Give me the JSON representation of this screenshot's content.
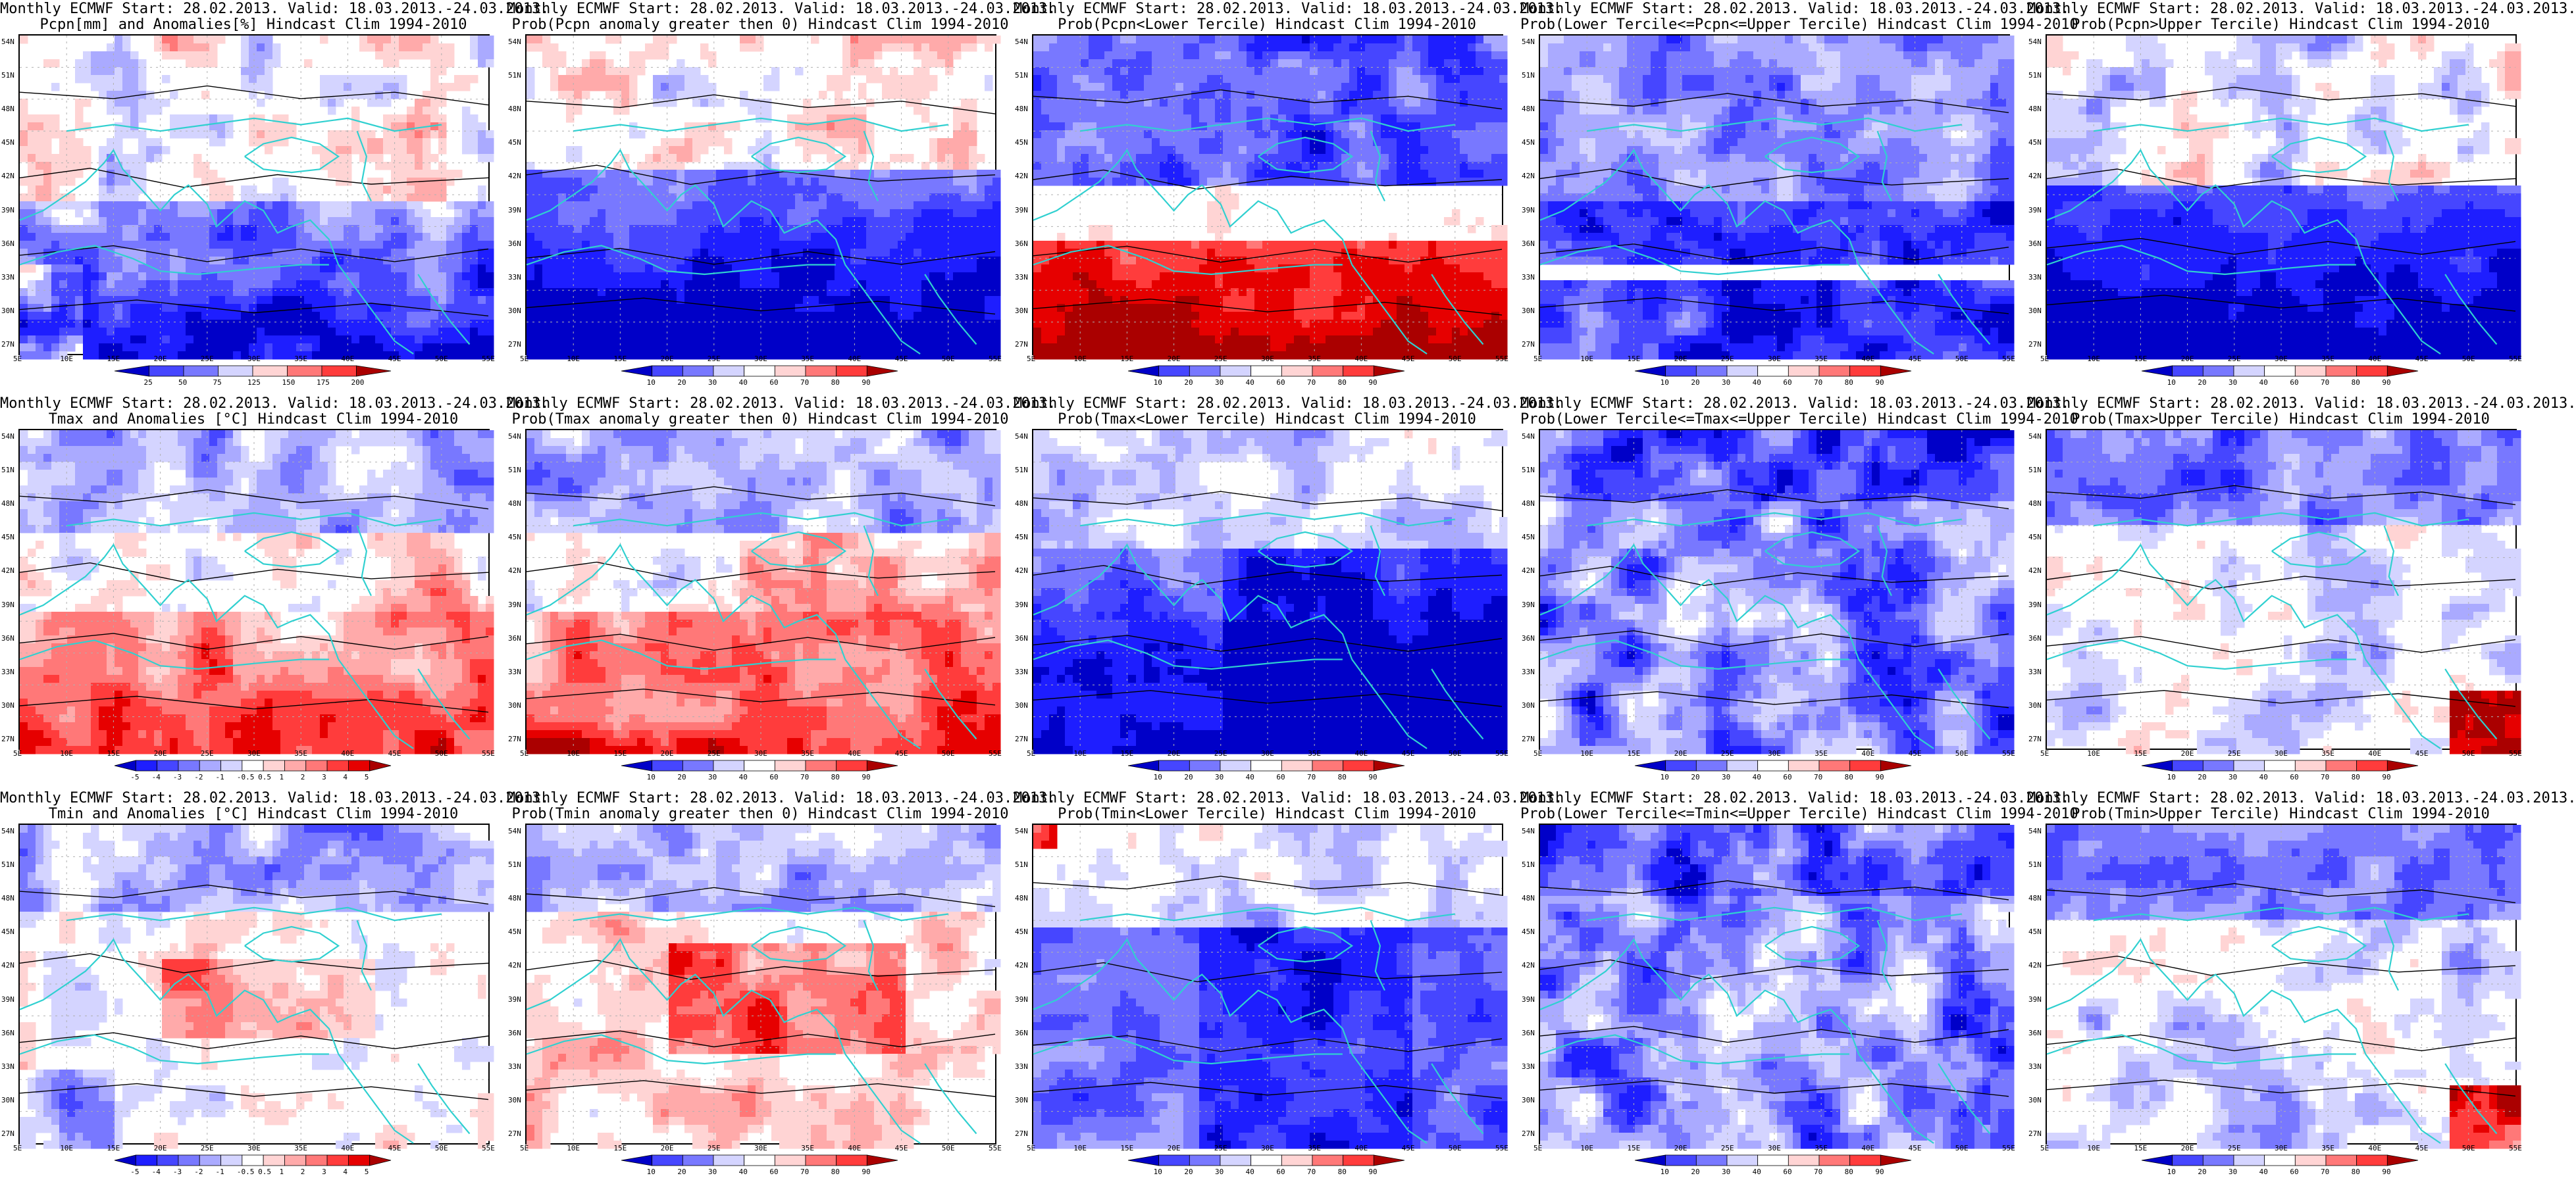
{
  "figure": {
    "columns": [
      {
        "key": "anomaly"
      },
      {
        "key": "prob_gt0"
      },
      {
        "key": "lower"
      },
      {
        "key": "middle"
      },
      {
        "key": "upper"
      }
    ],
    "rows": [
      {
        "variable": "Pcpn",
        "panels": [
          {
            "title1": "Monthly ECMWF Start: 28.02.2013. Valid: 18.03.2013.-24.03.2013.",
            "title2": "Pcpn[mm] and Anomalies[%] Hindcast Clim 1994-2010",
            "colorbar": [
              "25",
              "50",
              "75",
              "125",
              "150",
              "175",
              "200"
            ],
            "scheme": "anom",
            "pattern": "pcpn_anom"
          },
          {
            "title1": "Monthly ECMWF Start: 28.02.2013. Valid: 18.03.2013.-24.03.2013.",
            "title2": "Prob(Pcpn anomaly greater then 0) Hindcast Clim 1994-2010",
            "colorbar": [
              "10",
              "20",
              "30",
              "40",
              "60",
              "70",
              "80",
              "90"
            ],
            "scheme": "prob",
            "pattern": "pcpn_gt0"
          },
          {
            "title1": "Monthly ECMWF Start: 28.02.2013. Valid: 18.03.2013.-24.03.2013.",
            "title2": "Prob(Pcpn<Lower Tercile) Hindcast Clim 1994-2010",
            "colorbar": [
              "10",
              "20",
              "30",
              "40",
              "60",
              "70",
              "80",
              "90"
            ],
            "scheme": "prob",
            "pattern": "pcpn_lower"
          },
          {
            "title1": "Monthly ECMWF Start: 28.02.2013. Valid: 18.03.2013.-24.03.2013.",
            "title2": "Prob(Lower Tercile<=Pcpn<=Upper Tercile) Hindcast Clim 1994-2010",
            "colorbar": [
              "10",
              "20",
              "30",
              "40",
              "60",
              "70",
              "80",
              "90"
            ],
            "scheme": "prob",
            "pattern": "pcpn_mid"
          },
          {
            "title1": "Monthly ECMWF Start: 28.02.2013. Valid: 18.03.2013.-24.03.2013.",
            "title2": "Prob(Pcpn>Upper Tercile) Hindcast Clim 1994-2010",
            "colorbar": [
              "10",
              "20",
              "30",
              "40",
              "60",
              "70",
              "80",
              "90"
            ],
            "scheme": "prob",
            "pattern": "pcpn_upper"
          }
        ]
      },
      {
        "variable": "Tmax",
        "panels": [
          {
            "title1": "Monthly ECMWF Start: 28.02.2013. Valid: 18.03.2013.-24.03.2013.",
            "title2": "Tmax and Anomalies [°C] Hindcast Clim 1994-2010",
            "colorbar": [
              "-5",
              "-4",
              "-3",
              "-2",
              "-1",
              "-0.5",
              "0.5",
              "1",
              "2",
              "3",
              "4",
              "5"
            ],
            "scheme": "anom",
            "pattern": "t_warm_south"
          },
          {
            "title1": "Monthly ECMWF Start: 28.02.2013. Valid: 18.03.2013.-24.03.2013.",
            "title2": "Prob(Tmax anomaly greater then 0) Hindcast Clim 1994-2010",
            "colorbar": [
              "10",
              "20",
              "30",
              "40",
              "60",
              "70",
              "80",
              "90"
            ],
            "scheme": "prob",
            "pattern": "t_warm_south"
          },
          {
            "title1": "Monthly ECMWF Start: 28.02.2013. Valid: 18.03.2013.-24.03.2013.",
            "title2": "Prob(Tmax<Lower Tercile) Hindcast Clim 1994-2010",
            "colorbar": [
              "10",
              "20",
              "30",
              "40",
              "60",
              "70",
              "80",
              "90"
            ],
            "scheme": "prob",
            "pattern": "t_lower"
          },
          {
            "title1": "Monthly ECMWF Start: 28.02.2013. Valid: 18.03.2013.-24.03.2013.",
            "title2": "Prob(Lower Tercile<=Tmax<=Upper Tercile) Hindcast Clim 1994-2010",
            "colorbar": [
              "10",
              "20",
              "30",
              "40",
              "60",
              "70",
              "80",
              "90"
            ],
            "scheme": "prob",
            "pattern": "t_mid"
          },
          {
            "title1": "Monthly ECMWF Start: 28.02.2013. Valid: 18.03.2013.-24.03.2013.",
            "title2": "Prob(Tmax>Upper Tercile) Hindcast Clim 1994-2010",
            "colorbar": [
              "10",
              "20",
              "30",
              "40",
              "60",
              "70",
              "80",
              "90"
            ],
            "scheme": "prob",
            "pattern": "t_upper"
          }
        ]
      },
      {
        "variable": "Tmin",
        "panels": [
          {
            "title1": "Monthly ECMWF Start: 28.02.2013. Valid: 18.03.2013.-24.03.2013.",
            "title2": "Tmin and Anomalies [°C] Hindcast Clim 1994-2010",
            "colorbar": [
              "-5",
              "-4",
              "-3",
              "-2",
              "-1",
              "-0.5",
              "0.5",
              "1",
              "2",
              "3",
              "4",
              "5"
            ],
            "scheme": "anom",
            "pattern": "tmin_anom"
          },
          {
            "title1": "Monthly ECMWF Start: 28.02.2013. Valid: 18.03.2013.-24.03.2013.",
            "title2": "Prob(Tmin anomaly greater then 0) Hindcast Clim 1994-2010",
            "colorbar": [
              "10",
              "20",
              "30",
              "40",
              "60",
              "70",
              "80",
              "90"
            ],
            "scheme": "prob",
            "pattern": "tmin_gt0"
          },
          {
            "title1": "Monthly ECMWF Start: 28.02.2013. Valid: 18.03.2013.-24.03.2013.",
            "title2": "Prob(Tmin<Lower Tercile) Hindcast Clim 1994-2010",
            "colorbar": [
              "10",
              "20",
              "30",
              "40",
              "60",
              "70",
              "80",
              "90"
            ],
            "scheme": "prob",
            "pattern": "tmin_lower"
          },
          {
            "title1": "Monthly ECMWF Start: 28.02.2013. Valid: 18.03.2013.-24.03.2013.",
            "title2": "Prob(Lower Tercile<=Tmin<=Upper Tercile) Hindcast Clim 1994-2010",
            "colorbar": [
              "10",
              "20",
              "30",
              "40",
              "60",
              "70",
              "80",
              "90"
            ],
            "scheme": "prob",
            "pattern": "t_mid"
          },
          {
            "title1": "Monthly ECMWF Start: 28.02.2013. Valid: 18.03.2013.-24.03.2013.",
            "title2": "Prob(Tmin>Upper Tercile) Hindcast Clim 1994-2010",
            "colorbar": [
              "10",
              "20",
              "30",
              "40",
              "60",
              "70",
              "80",
              "90"
            ],
            "scheme": "prob",
            "pattern": "t_upper"
          }
        ]
      }
    ],
    "lat_labels": [
      "54N",
      "51N",
      "48N",
      "45N",
      "42N",
      "39N",
      "36N",
      "33N",
      "30N",
      "27N"
    ],
    "lon_labels": [
      "5E",
      "10E",
      "15E",
      "20E",
      "25E",
      "30E",
      "35E",
      "40E",
      "45E",
      "50E",
      "55E"
    ],
    "colors": {
      "blue_scale": [
        "#0000c8",
        "#1e1eff",
        "#4646ff",
        "#7878ff",
        "#aaaaff",
        "#d4d4ff",
        "#ffffff"
      ],
      "red_scale": [
        "#ffffff",
        "#ffd4d4",
        "#ffaaaa",
        "#ff7878",
        "#ff3c3c",
        "#e60000",
        "#aa0000"
      ],
      "coast": "#30d0d0",
      "contour": "#000000",
      "grid": "#b0b0b0"
    }
  }
}
